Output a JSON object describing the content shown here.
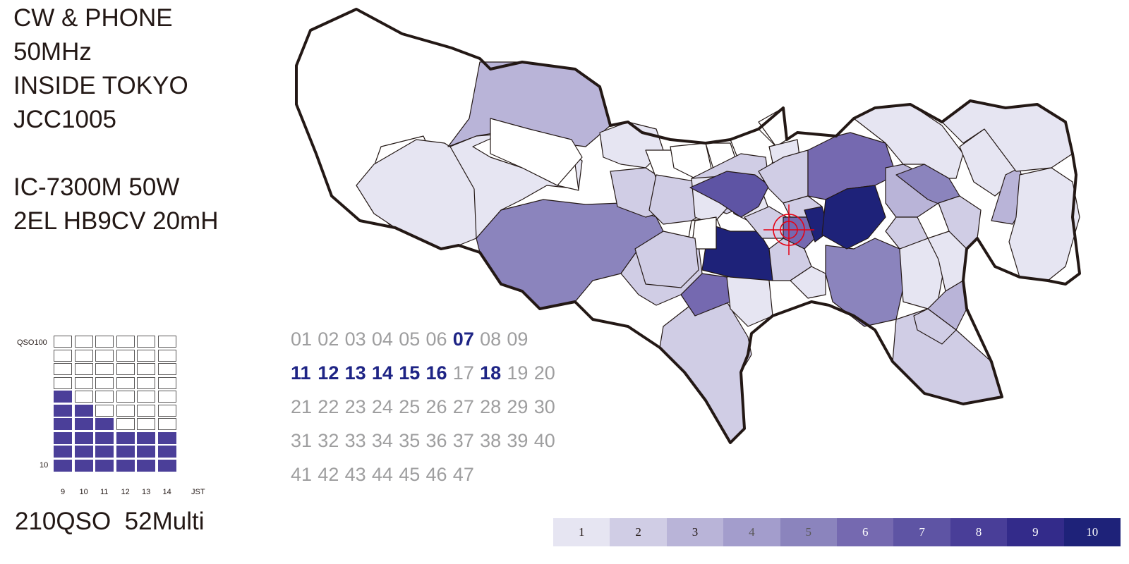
{
  "info": {
    "mode": "CW & PHONE",
    "band": "50MHz",
    "category": "INSIDE TOKYO",
    "jcc": "JCC1005",
    "rig": "IC-7300M 50W",
    "antenna": "2EL HB9CV 20mH"
  },
  "summary": {
    "qso": "210QSO",
    "multi": "52Multi"
  },
  "qso_chart": {
    "ylabel_top": "QSO100",
    "ylabel_bottom": "10",
    "unit": "JST",
    "hours": [
      "9",
      "10",
      "11",
      "12",
      "13",
      "14"
    ],
    "max_blocks": 10,
    "blocks": [
      6,
      5,
      4,
      3,
      3,
      3
    ],
    "fill_color": "#4b3f99"
  },
  "areas": {
    "rows": [
      [
        {
          "n": "01",
          "hit": false
        },
        {
          "n": "02",
          "hit": false
        },
        {
          "n": "03",
          "hit": false
        },
        {
          "n": "04",
          "hit": false
        },
        {
          "n": "05",
          "hit": false
        },
        {
          "n": "06",
          "hit": false
        },
        {
          "n": "07",
          "hit": true
        },
        {
          "n": "08",
          "hit": false
        },
        {
          "n": "09",
          "hit": false
        }
      ],
      [
        {
          "n": "11",
          "hit": true
        },
        {
          "n": "12",
          "hit": true
        },
        {
          "n": "13",
          "hit": true
        },
        {
          "n": "14",
          "hit": true
        },
        {
          "n": "15",
          "hit": true
        },
        {
          "n": "16",
          "hit": true
        },
        {
          "n": "17",
          "hit": false
        },
        {
          "n": "18",
          "hit": true
        },
        {
          "n": "19",
          "hit": false
        },
        {
          "n": "20",
          "hit": false
        }
      ],
      [
        {
          "n": "21",
          "hit": false
        },
        {
          "n": "22",
          "hit": false
        },
        {
          "n": "23",
          "hit": false
        },
        {
          "n": "24",
          "hit": false
        },
        {
          "n": "25",
          "hit": false
        },
        {
          "n": "26",
          "hit": false
        },
        {
          "n": "27",
          "hit": false
        },
        {
          "n": "28",
          "hit": false
        },
        {
          "n": "29",
          "hit": false
        },
        {
          "n": "30",
          "hit": false
        }
      ],
      [
        {
          "n": "31",
          "hit": false
        },
        {
          "n": "32",
          "hit": false
        },
        {
          "n": "33",
          "hit": false
        },
        {
          "n": "34",
          "hit": false
        },
        {
          "n": "35",
          "hit": false
        },
        {
          "n": "36",
          "hit": false
        },
        {
          "n": "37",
          "hit": false
        },
        {
          "n": "38",
          "hit": false
        },
        {
          "n": "39",
          "hit": false
        },
        {
          "n": "40",
          "hit": false
        }
      ],
      [
        {
          "n": "41",
          "hit": false
        },
        {
          "n": "42",
          "hit": false
        },
        {
          "n": "43",
          "hit": false
        },
        {
          "n": "44",
          "hit": false
        },
        {
          "n": "45",
          "hit": false
        },
        {
          "n": "46",
          "hit": false
        },
        {
          "n": "47",
          "hit": false
        }
      ]
    ],
    "hit_color": "#1e2485",
    "miss_color": "#9e9e9f"
  },
  "legend": [
    {
      "label": "1",
      "color": "#e6e5f2",
      "text": "#231815"
    },
    {
      "label": "2",
      "color": "#d0cde5",
      "text": "#231815"
    },
    {
      "label": "3",
      "color": "#b9b4d8",
      "text": "#231815"
    },
    {
      "label": "4",
      "color": "#a39dcc",
      "text": "#595757"
    },
    {
      "label": "5",
      "color": "#8b84bd",
      "text": "#595757"
    },
    {
      "label": "6",
      "color": "#7569b0",
      "text": "#ffffff"
    },
    {
      "label": "7",
      "color": "#5e54a4",
      "text": "#ffffff"
    },
    {
      "label": "8",
      "color": "#493e98",
      "text": "#ffffff"
    },
    {
      "label": "9",
      "color": "#332b8a",
      "text": "#ffffff"
    },
    {
      "label": "10",
      "color": "#1e2279",
      "text": "#ffffff"
    }
  ],
  "map_marker": "crosshair-target-icon"
}
